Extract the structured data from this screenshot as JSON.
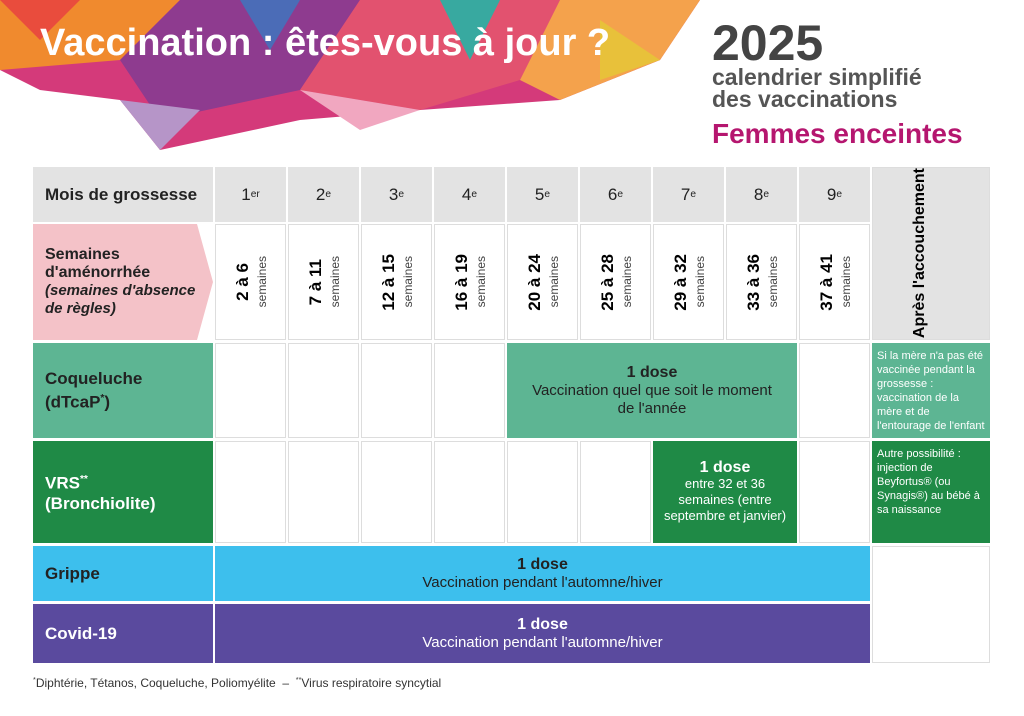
{
  "header": {
    "title": "Vaccination : êtes-vous à jour ?",
    "year": "2025",
    "subtitle_line1": "calendrier simplifié",
    "subtitle_line2": "des vaccinations",
    "audience": "Femmes enceintes"
  },
  "table": {
    "month_label": "Mois de grossesse",
    "months": [
      {
        "number": "1",
        "suffix": "er"
      },
      {
        "number": "2",
        "suffix": "e"
      },
      {
        "number": "3",
        "suffix": "e"
      },
      {
        "number": "4",
        "suffix": "e"
      },
      {
        "number": "5",
        "suffix": "e"
      },
      {
        "number": "6",
        "suffix": "e"
      },
      {
        "number": "7",
        "suffix": "e"
      },
      {
        "number": "8",
        "suffix": "e"
      },
      {
        "number": "9",
        "suffix": "e"
      }
    ],
    "weeks_label": "Semaines d'aménorrhée",
    "weeks_note": "(semaines d'absence de règles)",
    "weeks": [
      "2 à 6",
      "7 à 11",
      "12 à 15",
      "16 à 19",
      "20 à 24",
      "25 à 28",
      "29 à 32",
      "33 à 36",
      "37 à 41"
    ],
    "weeks_unit": "semaines",
    "after": "Après l'accouchement",
    "coqueluche": {
      "name": "Coqueluche",
      "code": "(dTcaP",
      "code_sup": "*",
      "code_end": ")",
      "dose": "1 dose",
      "detail": "Vaccination quel que soit le moment de l'année",
      "after_note": "Si la mère n'a pas été vaccinée pendant la grossesse : vaccination de la mère et de l'entourage de l'enfant"
    },
    "vrs": {
      "name": "VRS",
      "name_sup": "**",
      "name_line2": "(Bronchiolite)",
      "dose": "1 dose",
      "detail": "entre 32 et 36 semaines (entre septembre et janvier)",
      "after_note": "Autre possibilité : injection de Beyfortus® (ou Synagis®) au bébé à sa naissance"
    },
    "grippe": {
      "name": "Grippe",
      "dose": "1 dose",
      "detail": "Vaccination pendant l'automne/hiver"
    },
    "covid": {
      "name": "Covid-19",
      "dose": "1 dose",
      "detail": "Vaccination pendant l'automne/hiver"
    }
  },
  "footnote": {
    "sup1": "*",
    "text1": "Diphtérie, Tétanos, Coqueluche, Poliomyélite",
    "separator": "–",
    "sup2": "**",
    "text2": "Virus respiratoire syncytial"
  }
}
